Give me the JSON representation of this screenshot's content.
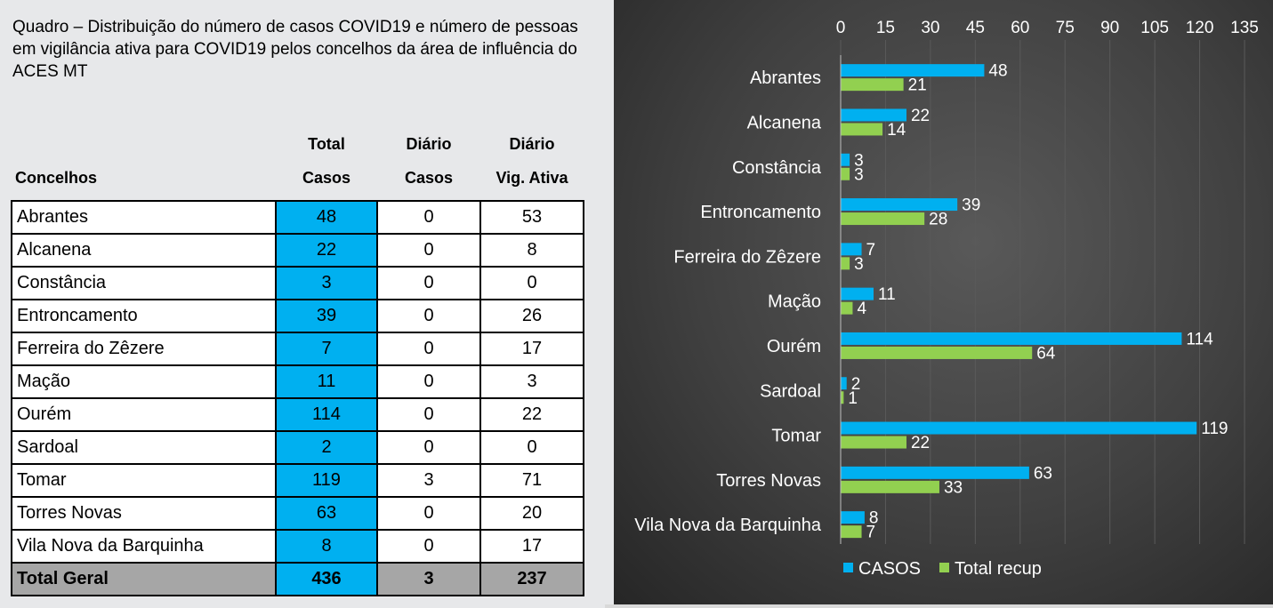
{
  "title": "Quadro – Distribuição do número de casos COVID19 e número de pessoas em vigilância ativa para COVID19 pelos concelhos da área de influência do ACES MT",
  "table": {
    "headers": {
      "concelhos": "Concelhos",
      "total_casos_1": "Total",
      "total_casos_2": "Casos",
      "diario_casos_1": "Diário",
      "diario_casos_2": "Casos",
      "diario_vig_1": "Diário",
      "diario_vig_2": "Vig. Ativa"
    },
    "rows": [
      {
        "name": "Abrantes",
        "total": "48",
        "diario": "0",
        "vig": "53"
      },
      {
        "name": "Alcanena",
        "total": "22",
        "diario": "0",
        "vig": "8"
      },
      {
        "name": "Constância",
        "total": "3",
        "diario": "0",
        "vig": "0"
      },
      {
        "name": "Entroncamento",
        "total": "39",
        "diario": "0",
        "vig": "26"
      },
      {
        "name": "Ferreira do Zêzere",
        "total": "7",
        "diario": "0",
        "vig": "17"
      },
      {
        "name": "Mação",
        "total": "11",
        "diario": "0",
        "vig": "3"
      },
      {
        "name": "Ourém",
        "total": "114",
        "diario": "0",
        "vig": "22"
      },
      {
        "name": "Sardoal",
        "total": "2",
        "diario": "0",
        "vig": "0"
      },
      {
        "name": "Tomar",
        "total": "119",
        "diario": "3",
        "vig": "71"
      },
      {
        "name": "Torres Novas",
        "total": "63",
        "diario": "0",
        "vig": "20"
      },
      {
        "name": "Vila Nova da Barquinha",
        "total": "8",
        "diario": "0",
        "vig": "17"
      }
    ],
    "total_row": {
      "name": "Total Geral",
      "total": "436",
      "diario": "3",
      "vig": "237"
    }
  },
  "chart_data": {
    "type": "bar",
    "orientation": "horizontal",
    "categories": [
      "Abrantes",
      "Alcanena",
      "Constância",
      "Entroncamento",
      "Ferreira do Zêzere",
      "Mação",
      "Ourém",
      "Sardoal",
      "Tomar",
      "Torres Novas",
      "Vila Nova da Barquinha"
    ],
    "series": [
      {
        "name": "CASOS",
        "color": "#00b0f0",
        "values": [
          48,
          22,
          3,
          39,
          7,
          11,
          114,
          2,
          119,
          63,
          8
        ]
      },
      {
        "name": "Total recup",
        "color": "#92d050",
        "values": [
          21,
          14,
          3,
          28,
          3,
          4,
          64,
          1,
          22,
          33,
          7
        ]
      }
    ],
    "xlim": [
      0,
      135
    ],
    "xticks": [
      0,
      15,
      30,
      45,
      60,
      75,
      90,
      105,
      120,
      135
    ],
    "axis_position": "top",
    "grid": true,
    "legend_position": "bottom",
    "data_labels": true,
    "background": "#404040",
    "text_color": "#ffffff",
    "gridline_color": "#5a5a5a"
  }
}
